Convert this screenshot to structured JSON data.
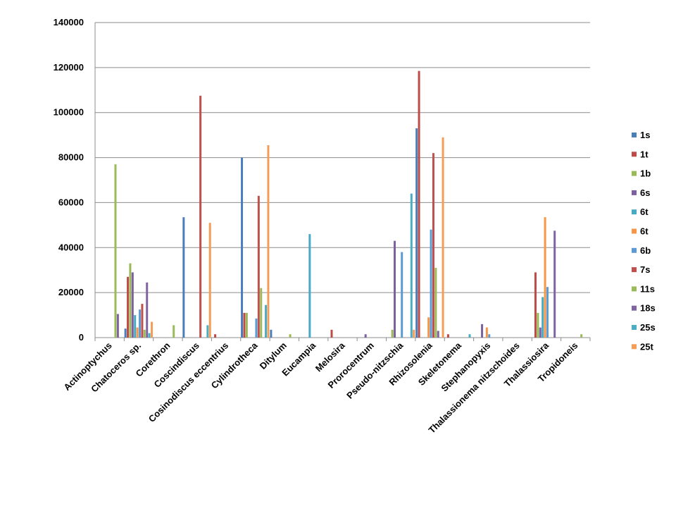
{
  "chart_data": {
    "type": "bar",
    "title": "",
    "xlabel": "",
    "ylabel": "",
    "ylim": [
      0,
      140000
    ],
    "yticks": [
      0,
      20000,
      40000,
      60000,
      80000,
      100000,
      120000,
      140000
    ],
    "ytick_labels": [
      "0",
      "20000",
      "40000",
      "60000",
      "80000",
      "100000",
      "120000",
      "140000"
    ],
    "grid": "horizontal",
    "legend_position": "right",
    "categories": [
      "Actinoptychus",
      "Chatoceros sp.",
      "Corethron",
      "Coscindiscus",
      "Cosinodiscus eccentrius",
      "Cylindrotheca",
      "Ditylum",
      "Eucampia",
      "Melosira",
      "Prorocentrum",
      "Pseudo-nitzschia",
      "Rhizosolenia",
      "Skeletonema",
      "Stephanopyxis",
      "Thalassionema nitzschoides",
      "Thalassiosira",
      "Tropidoneis"
    ],
    "series": [
      {
        "name": "1s",
        "color": "#4a7ebb",
        "values": [
          0,
          4000,
          0,
          53500,
          0,
          80000,
          3500,
          0,
          0,
          0,
          0,
          93000,
          0,
          0,
          0,
          0,
          0
        ]
      },
      {
        "name": "1t",
        "color": "#be4b48",
        "values": [
          0,
          27000,
          0,
          0,
          1500,
          11000,
          0,
          0,
          3500,
          0,
          0,
          118500,
          1500,
          0,
          0,
          29000,
          0
        ]
      },
      {
        "name": "1b",
        "color": "#98b954",
        "values": [
          0,
          33000,
          0,
          0,
          0,
          11000,
          0,
          0,
          0,
          0,
          3500,
          0,
          0,
          0,
          0,
          11000,
          0
        ]
      },
      {
        "name": "6s",
        "color": "#7d60a0",
        "values": [
          0,
          29000,
          0,
          0,
          0,
          0,
          0,
          0,
          0,
          1500,
          43000,
          0,
          0,
          6000,
          0,
          4500,
          0
        ]
      },
      {
        "name": "6t",
        "color": "#46aac5",
        "values": [
          0,
          10000,
          0,
          0,
          0,
          0,
          0,
          46000,
          0,
          0,
          0,
          0,
          0,
          0,
          0,
          18000,
          0
        ]
      },
      {
        "name": "6t",
        "color": "#f79646",
        "values": [
          0,
          4500,
          0,
          0,
          0,
          0,
          0,
          0,
          0,
          0,
          0,
          9000,
          0,
          4500,
          0,
          53500,
          0
        ]
      },
      {
        "name": "6b",
        "color": "#5b9bd5",
        "values": [
          0,
          12500,
          0,
          0,
          0,
          8500,
          0,
          0,
          0,
          0,
          38000,
          48000,
          0,
          1500,
          0,
          22500,
          0
        ]
      },
      {
        "name": "7s",
        "color": "#c0504d",
        "values": [
          0,
          15000,
          0,
          107500,
          0,
          63000,
          0,
          0,
          0,
          0,
          0,
          82000,
          0,
          0,
          0,
          0,
          0
        ]
      },
      {
        "name": "11s",
        "color": "#9bbb59",
        "values": [
          77000,
          3500,
          5500,
          0,
          0,
          22000,
          1500,
          0,
          0,
          0,
          0,
          31000,
          0,
          0,
          0,
          0,
          1500
        ]
      },
      {
        "name": "18s",
        "color": "#8064a2",
        "values": [
          10500,
          24500,
          0,
          0,
          0,
          0,
          0,
          0,
          0,
          0,
          0,
          3000,
          0,
          0,
          0,
          47500,
          0
        ]
      },
      {
        "name": "25s",
        "color": "#4bacc6",
        "values": [
          0,
          2000,
          0,
          5500,
          0,
          14500,
          0,
          0,
          0,
          0,
          64000,
          0,
          1500,
          0,
          0,
          0,
          0
        ]
      },
      {
        "name": "25t",
        "color": "#f59d56",
        "values": [
          0,
          7000,
          0,
          51000,
          0,
          85500,
          0,
          0,
          0,
          0,
          3500,
          89000,
          0,
          0,
          0,
          0,
          0
        ]
      }
    ]
  }
}
